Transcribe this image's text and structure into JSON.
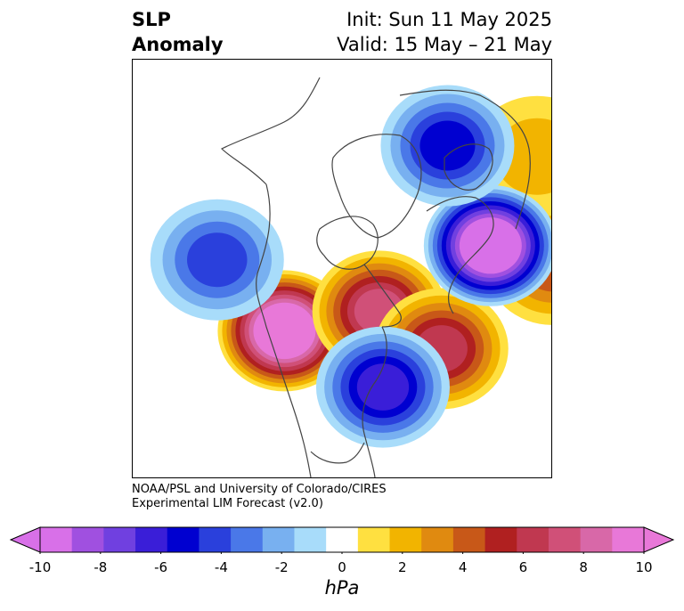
{
  "title": {
    "left_line1": "SLP",
    "left_line2": "Anomaly",
    "init": "Init: Sun 11 May 2025",
    "valid": "Valid: 15 May – 21 May"
  },
  "credit": {
    "line1": "NOAA/PSL and University of Colorado/CIRES",
    "line2": "Experimental LIM Forecast (v2.0)"
  },
  "colorbar": {
    "unit": "hPa",
    "ticks": [
      "-10",
      "-8",
      "-6",
      "-4",
      "-2",
      "0",
      "2",
      "4",
      "6",
      "8",
      "10"
    ],
    "bins": [
      -10,
      -9,
      -8,
      -7,
      -6,
      -5,
      -4,
      -3,
      -2,
      -1,
      1,
      2,
      3,
      4,
      5,
      6,
      7,
      8,
      9,
      10
    ],
    "colors": [
      "#d870e8",
      "#a050e0",
      "#7040e0",
      "#3a1ed8",
      "#0000d0",
      "#2a40dc",
      "#4a78e8",
      "#78b0f0",
      "#a8dcfa",
      "#ffffff",
      "#ffe040",
      "#f2b400",
      "#e08a10",
      "#c85818",
      "#b02020",
      "#c03850",
      "#d05078",
      "#d868a8",
      "#e878d8"
    ],
    "extend_low_color": "#d870e8",
    "extend_high_color": "#e878d8"
  },
  "map": {
    "anomalies": [
      {
        "id": "pacific-high",
        "center": [
          -140,
          42
        ],
        "peak_hpa": 11
      },
      {
        "id": "canada-high",
        "center": [
          -110,
          58
        ],
        "peak_hpa": 7
      },
      {
        "id": "great-lakes-high",
        "center": [
          -85,
          47
        ],
        "peak_hpa": 6
      },
      {
        "id": "atlantic-high",
        "center": [
          -35,
          45
        ],
        "peak_hpa": 4
      },
      {
        "id": "europe-high",
        "center": [
          5,
          52
        ],
        "peak_hpa": 2
      },
      {
        "id": "greenland-low",
        "center": [
          -40,
          62
        ],
        "peak_hpa": -11
      },
      {
        "id": "barents-low",
        "center": [
          35,
          72
        ],
        "peak_hpa": -5
      },
      {
        "id": "rockies-low",
        "center": [
          -105,
          38
        ],
        "peak_hpa": -6
      },
      {
        "id": "north-pacific-low",
        "center": [
          -170,
          38
        ],
        "peak_hpa": -4
      }
    ]
  }
}
